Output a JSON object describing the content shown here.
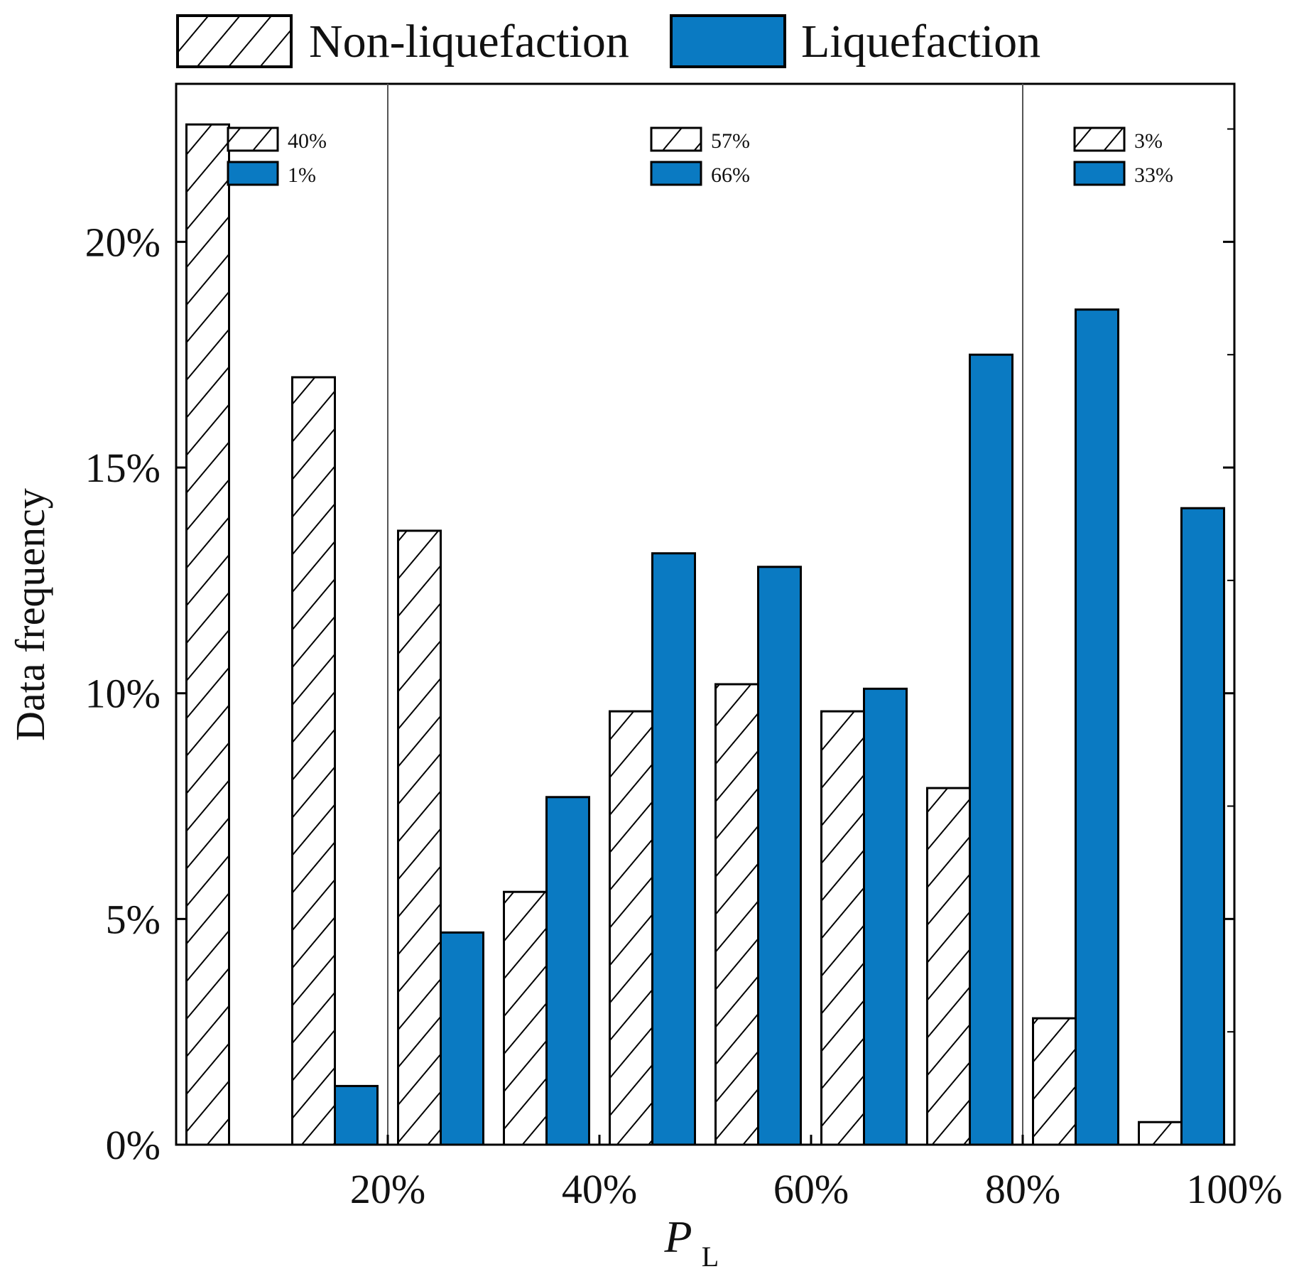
{
  "chart_data": {
    "type": "bar",
    "xlabel_main": "P",
    "xlabel_sub": "L",
    "ylabel": "Data frequency",
    "ylim": [
      0,
      23.5
    ],
    "yticks": [
      {
        "value": 0,
        "label": "0%"
      },
      {
        "value": 5,
        "label": "5%"
      },
      {
        "value": 10,
        "label": "10%"
      },
      {
        "value": 15,
        "label": "15%"
      },
      {
        "value": 20,
        "label": "20%"
      }
    ],
    "xticks": [
      {
        "value": 20,
        "label": "20%"
      },
      {
        "value": 40,
        "label": "40%"
      },
      {
        "value": 60,
        "label": "60%"
      },
      {
        "value": 80,
        "label": "80%"
      },
      {
        "value": 100,
        "label": "100%"
      }
    ],
    "bin_centers": [
      5,
      15,
      25,
      35,
      45,
      55,
      65,
      75,
      85,
      95
    ],
    "series": [
      {
        "name": "Non-liquefaction",
        "style": "hatched",
        "values": [
          22.6,
          17.0,
          13.6,
          5.6,
          9.6,
          10.2,
          9.6,
          7.9,
          2.8,
          0.5
        ]
      },
      {
        "name": "Liquefaction",
        "style": "solid",
        "values": [
          0,
          1.3,
          4.7,
          7.7,
          13.1,
          12.8,
          10.1,
          17.5,
          18.5,
          14.1
        ]
      }
    ],
    "legend": {
      "position": "top",
      "items": [
        "Non-liquefaction",
        "Liquefaction"
      ]
    },
    "regions": [
      {
        "start": 0,
        "end": 20,
        "non_liquefaction": "40%",
        "liquefaction": "1%"
      },
      {
        "start": 20,
        "end": 80,
        "non_liquefaction": "57%",
        "liquefaction": "66%"
      },
      {
        "start": 80,
        "end": 100,
        "non_liquefaction": "3%",
        "liquefaction": "33%"
      }
    ],
    "colors": {
      "liquefaction": "#0a7ac2",
      "hatch": "#000000",
      "axis": "#000000"
    }
  }
}
